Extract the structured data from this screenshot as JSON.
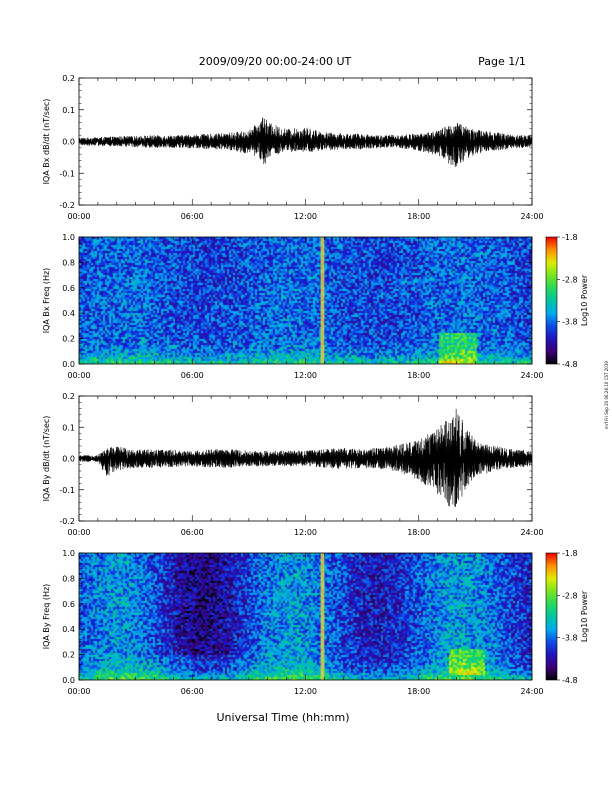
{
  "header": {
    "title": "2009/09/20  00:00-24:00 UT",
    "page": "Page 1/1"
  },
  "side_note": "mrf Fri Sep 20 06:26:10 CST 2019",
  "xlabel": "Universal Time (hh:mm)",
  "time_ticks": [
    "00:00",
    "06:00",
    "12:00",
    "18:00",
    "24:00"
  ],
  "time_range_hours": [
    0,
    24
  ],
  "colors": {
    "trace": "#000000",
    "stripe": "#e8d23c"
  },
  "chart_data": [
    {
      "type": "line",
      "ylabel": "IQA Bx dB/dt (nT/sec)",
      "ylim": [
        -0.2,
        0.2
      ],
      "yticks": [
        "0.2",
        "0.1",
        "0.0",
        "-0.1",
        "-0.2"
      ],
      "envelope": {
        "x_hours": [
          0,
          1,
          2,
          3,
          4,
          5,
          6,
          7,
          8,
          9,
          9.5,
          9.8,
          10,
          11,
          12,
          13,
          14,
          15,
          16,
          17,
          18,
          19,
          19.5,
          20,
          20.5,
          21,
          22,
          23,
          24
        ],
        "ymax": [
          0.012,
          0.014,
          0.016,
          0.018,
          0.02,
          0.02,
          0.022,
          0.024,
          0.028,
          0.035,
          0.06,
          0.09,
          0.06,
          0.04,
          0.045,
          0.03,
          0.025,
          0.025,
          0.02,
          0.022,
          0.025,
          0.035,
          0.05,
          0.06,
          0.05,
          0.04,
          0.03,
          0.022,
          0.02
        ],
        "ymin": [
          -0.012,
          -0.014,
          -0.016,
          -0.018,
          -0.02,
          -0.02,
          -0.022,
          -0.024,
          -0.028,
          -0.04,
          -0.05,
          -0.08,
          -0.05,
          -0.035,
          -0.035,
          -0.03,
          -0.025,
          -0.025,
          -0.02,
          -0.022,
          -0.03,
          -0.045,
          -0.07,
          -0.09,
          -0.06,
          -0.04,
          -0.03,
          -0.022,
          -0.02
        ]
      }
    },
    {
      "type": "heatmap",
      "ylabel": "IQA Bx Freq (Hz)",
      "ylim": [
        0,
        1.0
      ],
      "yticks": [
        "1.0",
        "0.8",
        "0.6",
        "0.4",
        "0.2",
        "0.0"
      ],
      "colorbar_label": "Log10 Power",
      "colorbar_ticks": [
        "-1.8",
        "-2.8",
        "-3.8",
        "-4.8"
      ],
      "crange": [
        -4.8,
        -1.8
      ],
      "stripe_hours": [
        12.8,
        13.0
      ],
      "enhanced_region": {
        "hours": [
          19,
          21
        ],
        "freq": [
          0,
          0.25
        ]
      }
    },
    {
      "type": "line",
      "ylabel": "IQA By dB/dt (nT/sec)",
      "ylim": [
        -0.2,
        0.2
      ],
      "yticks": [
        "0.2",
        "0.1",
        "0.0",
        "-0.1",
        "-0.2"
      ],
      "envelope": {
        "x_hours": [
          0,
          1,
          1.5,
          2,
          3,
          4,
          5,
          6,
          7,
          8,
          9,
          10,
          11,
          12,
          13,
          14,
          15,
          16,
          17,
          18,
          19,
          19.5,
          20,
          20.5,
          21,
          22,
          23,
          24
        ],
        "ymax": [
          0.01,
          0.012,
          0.035,
          0.04,
          0.03,
          0.03,
          0.028,
          0.025,
          0.03,
          0.03,
          0.025,
          0.025,
          0.025,
          0.025,
          0.03,
          0.035,
          0.03,
          0.035,
          0.045,
          0.06,
          0.1,
          0.13,
          0.17,
          0.1,
          0.06,
          0.04,
          0.03,
          0.025
        ],
        "ymin": [
          -0.01,
          -0.012,
          -0.06,
          -0.04,
          -0.03,
          -0.03,
          -0.028,
          -0.025,
          -0.03,
          -0.03,
          -0.025,
          -0.025,
          -0.025,
          -0.025,
          -0.03,
          -0.035,
          -0.03,
          -0.035,
          -0.045,
          -0.07,
          -0.12,
          -0.15,
          -0.165,
          -0.1,
          -0.06,
          -0.04,
          -0.03,
          -0.025
        ]
      }
    },
    {
      "type": "heatmap",
      "ylabel": "IQA By Freq (Hz)",
      "ylim": [
        0,
        1.0
      ],
      "yticks": [
        "1.0",
        "0.8",
        "0.6",
        "0.4",
        "0.2",
        "0.0"
      ],
      "colorbar_label": "Log10 Power",
      "colorbar_ticks": [
        "-1.8",
        "-2.8",
        "-3.8",
        "-4.8"
      ],
      "crange": [
        -4.8,
        -1.8
      ],
      "stripe_hours": [
        12.8,
        13.0
      ],
      "enhanced_region": {
        "hours": [
          19.5,
          21.5
        ],
        "freq": [
          0.05,
          0.25
        ]
      }
    }
  ]
}
